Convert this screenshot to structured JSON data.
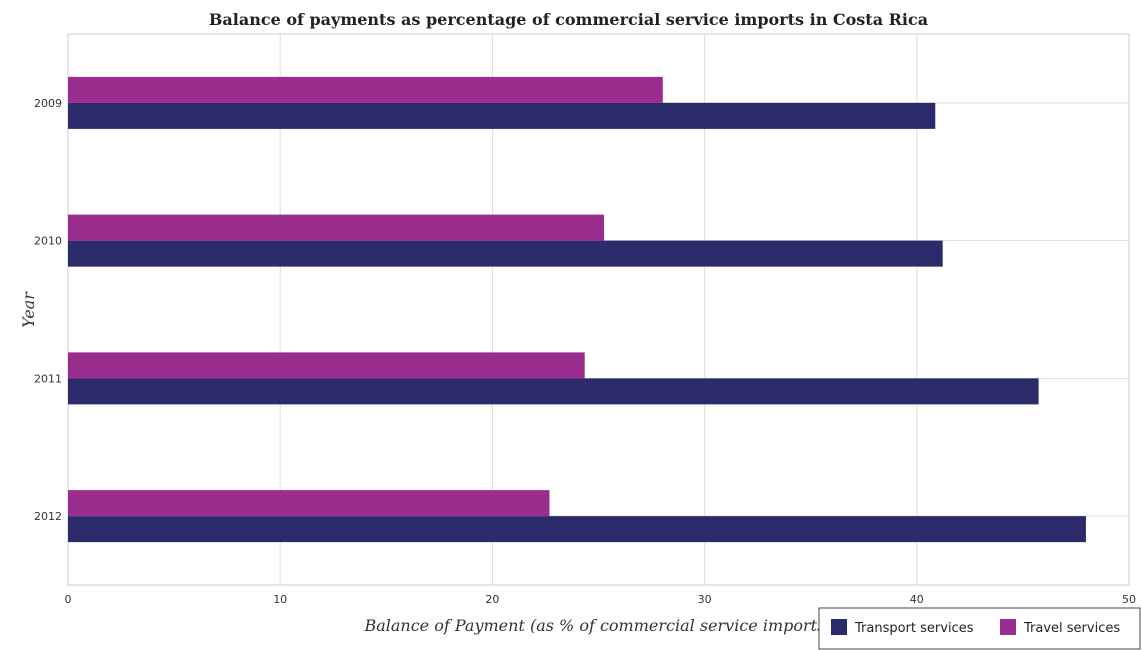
{
  "chart_data": {
    "type": "bar",
    "orientation": "horizontal",
    "title": "Balance of payments as percentage of commercial service imports in Costa Rica",
    "xlabel": "Balance of Payment (as % of commercial service imports)",
    "ylabel": "Year",
    "categories": [
      "2009",
      "2010",
      "2011",
      "2012"
    ],
    "series": [
      {
        "name": "Transport services",
        "color": "#2b2b6b",
        "values": [
          40.87,
          41.22,
          45.74,
          47.97
        ]
      },
      {
        "name": "Travel services",
        "color": "#9b2d8e",
        "values": [
          28.03,
          25.26,
          24.35,
          22.69
        ]
      }
    ],
    "xlim": [
      0,
      50
    ],
    "xticks": [
      "0",
      "10",
      "20",
      "30",
      "40",
      "50"
    ],
    "grid": true,
    "legend_position": "bottom-right"
  }
}
